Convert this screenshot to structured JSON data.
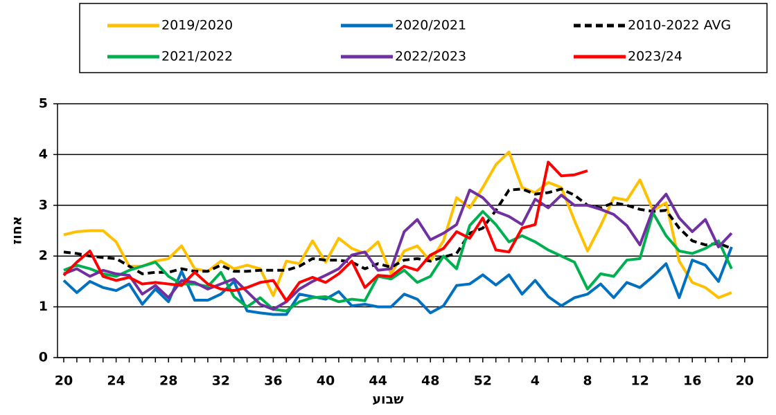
{
  "chart_data": {
    "type": "line",
    "x_label": "שבוע",
    "y_label": "אחוז",
    "categories": [
      "20",
      null,
      null,
      null,
      "24",
      null,
      null,
      null,
      "28",
      null,
      null,
      null,
      "32",
      null,
      null,
      null,
      "36",
      null,
      null,
      null,
      "40",
      null,
      null,
      null,
      "44",
      null,
      null,
      null,
      "48",
      null,
      null,
      null,
      "52",
      null,
      null,
      null,
      "4",
      null,
      null,
      null,
      "8",
      null,
      null,
      null,
      "12",
      null,
      null,
      null,
      "16",
      null,
      null,
      null,
      "20"
    ],
    "ylim": [
      0,
      5
    ],
    "yticks": [
      0,
      1,
      2,
      3,
      4,
      5
    ],
    "grid": true,
    "series": [
      {
        "name": "2019/2020",
        "color": "#ffc000",
        "values": [
          2.42,
          2.48,
          2.5,
          2.5,
          2.28,
          1.8,
          1.8,
          1.9,
          1.95,
          2.2,
          1.75,
          1.7,
          1.9,
          1.75,
          1.82,
          1.75,
          1.22,
          1.9,
          1.85,
          2.3,
          1.88,
          2.35,
          2.15,
          2.05,
          2.28,
          1.65,
          2.1,
          2.2,
          1.9,
          2.3,
          3.15,
          2.95,
          3.35,
          3.8,
          4.05,
          3.35,
          3.25,
          3.45,
          3.35,
          2.7,
          2.1,
          2.6,
          3.15,
          3.1,
          3.5,
          2.9,
          3.05,
          1.9,
          1.48,
          1.38,
          1.18,
          1.28,
          null
        ]
      },
      {
        "name": "2020/2021",
        "color": "#0070c0",
        "values": [
          1.52,
          1.28,
          1.5,
          1.38,
          1.32,
          1.45,
          1.05,
          1.35,
          1.1,
          1.7,
          1.13,
          1.13,
          1.25,
          1.5,
          0.92,
          0.88,
          0.85,
          0.85,
          1.25,
          1.2,
          1.15,
          1.3,
          1.02,
          1.05,
          1.0,
          1.0,
          1.25,
          1.15,
          0.88,
          1.02,
          1.42,
          1.45,
          1.63,
          1.43,
          1.63,
          1.25,
          1.52,
          1.2,
          1.02,
          1.18,
          1.25,
          1.45,
          1.18,
          1.48,
          1.38,
          1.6,
          1.85,
          1.18,
          1.92,
          1.82,
          1.5,
          2.18,
          null
        ]
      },
      {
        "name": "2010-2022 AVG",
        "color": "#000000",
        "dash": true,
        "values": [
          2.08,
          2.05,
          2.0,
          1.97,
          1.95,
          1.8,
          1.65,
          1.68,
          1.68,
          1.75,
          1.7,
          1.7,
          1.82,
          1.7,
          1.7,
          1.72,
          1.72,
          1.72,
          1.8,
          1.95,
          1.92,
          1.92,
          1.88,
          1.75,
          1.85,
          1.78,
          1.92,
          1.95,
          1.9,
          1.98,
          2.05,
          2.45,
          2.55,
          2.9,
          3.3,
          3.32,
          3.22,
          3.25,
          3.32,
          3.2,
          3.0,
          2.95,
          3.05,
          3.0,
          2.92,
          2.88,
          2.9,
          2.55,
          2.3,
          2.22,
          2.25,
          2.15,
          null
        ]
      },
      {
        "name": "2021/2022",
        "color": "#00b050",
        "values": [
          1.72,
          1.82,
          1.75,
          1.65,
          1.6,
          1.72,
          1.8,
          1.88,
          1.6,
          1.45,
          1.45,
          1.4,
          1.68,
          1.2,
          1.0,
          1.18,
          0.95,
          0.92,
          1.1,
          1.18,
          1.2,
          1.1,
          1.15,
          1.12,
          1.6,
          1.55,
          1.72,
          1.48,
          1.6,
          2.0,
          1.75,
          2.6,
          2.88,
          2.62,
          2.28,
          2.4,
          2.28,
          2.12,
          2.0,
          1.88,
          1.35,
          1.65,
          1.6,
          1.92,
          1.95,
          2.85,
          2.4,
          2.1,
          2.05,
          2.15,
          2.3,
          1.75,
          null
        ]
      },
      {
        "name": "2022/2023",
        "color": "#7030a0",
        "values": [
          1.65,
          1.75,
          1.6,
          1.72,
          1.65,
          1.62,
          1.25,
          1.42,
          1.18,
          1.52,
          1.48,
          1.35,
          1.45,
          1.55,
          1.3,
          1.05,
          0.95,
          1.1,
          1.35,
          1.5,
          1.62,
          1.75,
          2.02,
          2.08,
          1.72,
          1.75,
          2.48,
          2.72,
          2.32,
          2.45,
          2.62,
          3.3,
          3.15,
          2.88,
          2.78,
          2.62,
          3.12,
          2.95,
          3.2,
          3.0,
          3.0,
          2.92,
          2.82,
          2.6,
          2.22,
          2.92,
          3.22,
          2.75,
          2.48,
          2.72,
          2.18,
          2.45,
          null
        ]
      },
      {
        "name": "2023/24",
        "color": "#ff0000",
        "values": [
          1.62,
          1.88,
          2.1,
          1.6,
          1.52,
          1.58,
          1.45,
          1.48,
          1.45,
          1.42,
          1.68,
          1.45,
          1.35,
          1.32,
          1.38,
          1.48,
          1.52,
          1.12,
          1.48,
          1.58,
          1.48,
          1.65,
          1.9,
          1.38,
          1.62,
          1.6,
          1.8,
          1.72,
          2.02,
          2.15,
          2.48,
          2.35,
          2.75,
          2.12,
          2.08,
          2.55,
          2.62,
          3.85,
          3.58,
          3.6,
          3.68,
          null,
          null,
          null,
          null,
          null,
          null,
          null,
          null,
          null,
          null,
          null,
          null
        ]
      }
    ]
  }
}
